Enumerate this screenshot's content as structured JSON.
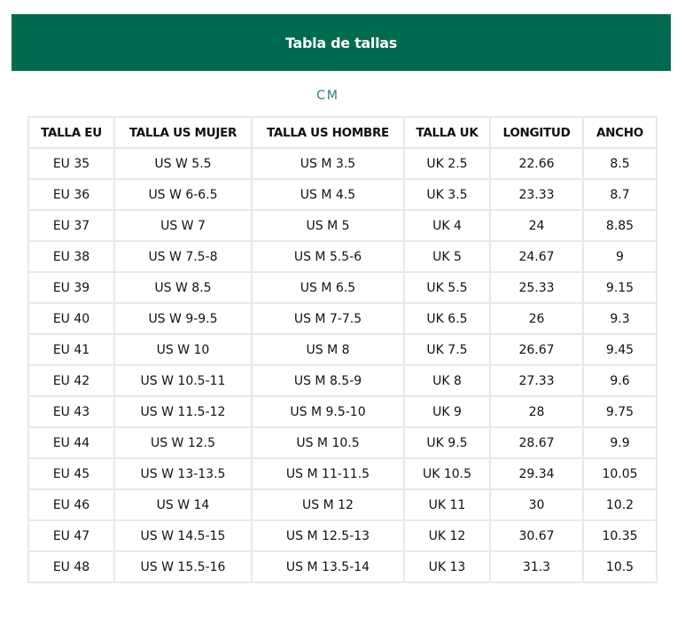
{
  "title": "Tabla de tallas",
  "unit": "CM",
  "headers": [
    "TALLA EU",
    "TALLA US MUJER",
    "TALLA US HOMBRE",
    "TALLA UK",
    "LONGITUD",
    "ANCHO"
  ],
  "rows": [
    [
      "EU 35",
      "US W 5.5",
      "US M 3.5",
      "UK 2.5",
      "22.66",
      "8.5"
    ],
    [
      "EU 36",
      "US W 6-6.5",
      "US M 4.5",
      "UK 3.5",
      "23.33",
      "8.7"
    ],
    [
      "EU 37",
      "US W 7",
      "US M 5",
      "UK 4",
      "24",
      "8.85"
    ],
    [
      "EU 38",
      "US W 7.5-8",
      "US M 5.5-6",
      "UK 5",
      "24.67",
      "9"
    ],
    [
      "EU 39",
      "US W 8.5",
      "US M 6.5",
      "UK 5.5",
      "25.33",
      "9.15"
    ],
    [
      "EU 40",
      "US W 9-9.5",
      "US M 7-7.5",
      "UK 6.5",
      "26",
      "9.3"
    ],
    [
      "EU 41",
      "US W 10",
      "US M 8",
      "UK 7.5",
      "26.67",
      "9.45"
    ],
    [
      "EU 42",
      "US W 10.5-11",
      "US M 8.5-9",
      "UK 8",
      "27.33",
      "9.6"
    ],
    [
      "EU 43",
      "US W 11.5-12",
      "US M 9.5-10",
      "UK 9",
      "28",
      "9.75"
    ],
    [
      "EU 44",
      "US W 12.5",
      "US M 10.5",
      "UK 9.5",
      "28.67",
      "9.9"
    ],
    [
      "EU 45",
      "US W 13-13.5",
      "US M 11-11.5",
      "UK 10.5",
      "29.34",
      "10.05"
    ],
    [
      "EU 46",
      "US W 14",
      "US M 12",
      "UK 11",
      "30",
      "10.2"
    ],
    [
      "EU 47",
      "US W 14.5-15",
      "US M 12.5-13",
      "UK 12",
      "30.67",
      "10.35"
    ],
    [
      "EU 48",
      "US W 15.5-16",
      "US M 13.5-14",
      "UK 13",
      "31.3",
      "10.5"
    ]
  ],
  "colors": {
    "banner": "#006a4e",
    "unit": "#2f7d78",
    "border": "#e8e8e8"
  }
}
